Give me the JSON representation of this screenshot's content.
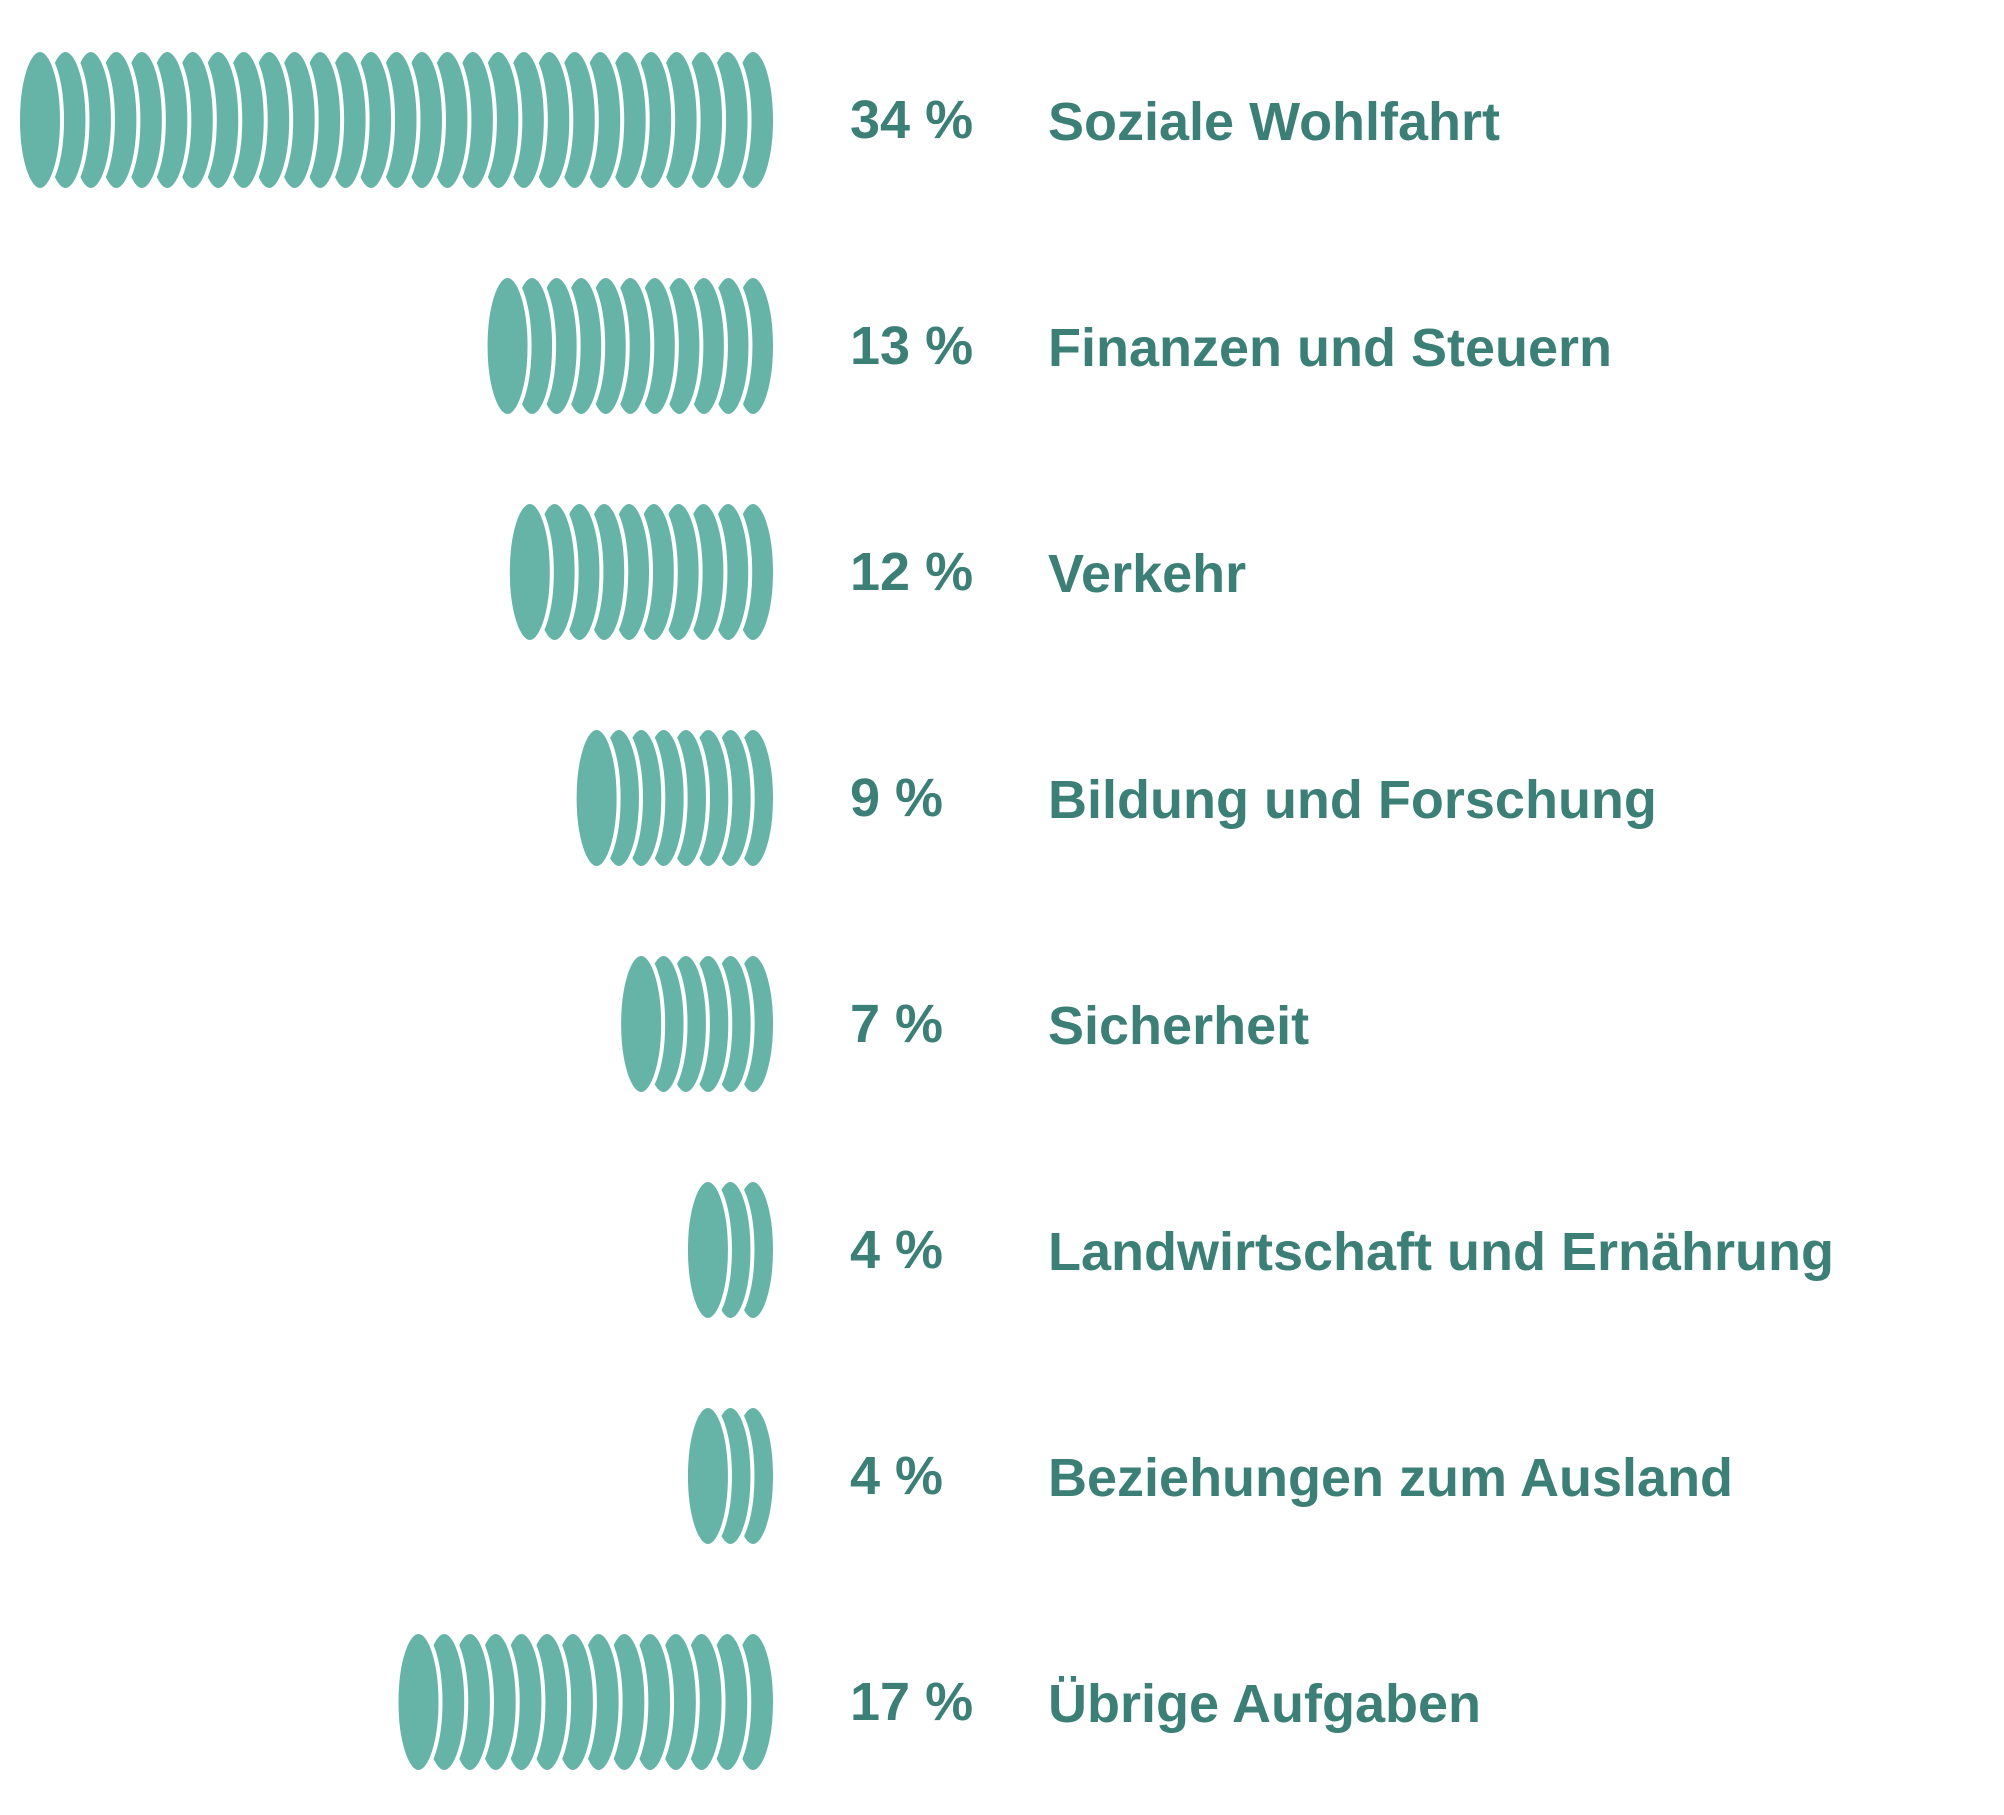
{
  "colors": {
    "coin": "#66b4a8",
    "coin_edge": "#ffffff",
    "text": "#3c7f77",
    "background": "#ffffff"
  },
  "chart_data": {
    "type": "bar",
    "orientation": "horizontal",
    "mark": "coin-stack",
    "unit": "%",
    "categories": [
      "Soziale Wohlfahrt",
      "Finanzen und Steuern",
      "Verkehr",
      "Bildung und Forschung",
      "Sicherheit",
      "Landwirtschaft und Ernährung",
      "Beziehungen zum Ausland",
      "Übrige Aufgaben"
    ],
    "values": [
      34,
      13,
      12,
      9,
      7,
      4,
      4,
      17
    ],
    "value_labels": [
      "34 %",
      "13 %",
      "12 %",
      "9 %",
      "7 %",
      "4 %",
      "4 %",
      "17 %"
    ],
    "grid": false,
    "legend": "none"
  }
}
